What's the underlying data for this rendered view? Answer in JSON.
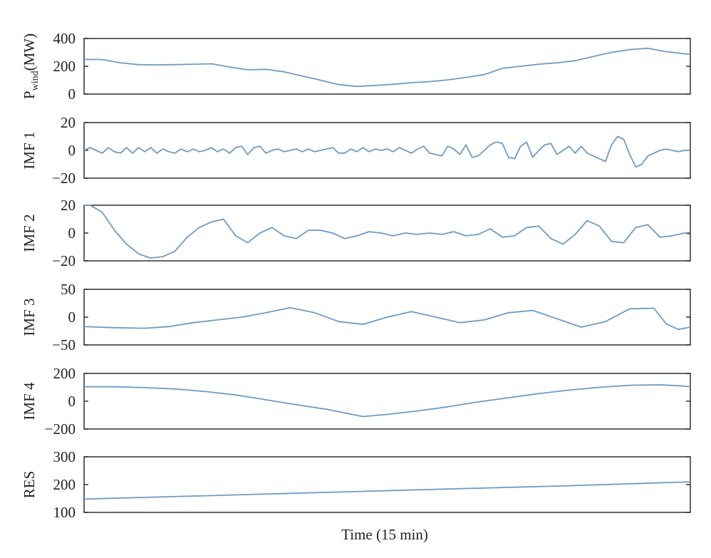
{
  "chart_data": [
    {
      "type": "line",
      "ylabel": "P",
      "ylabel_sub": "wind",
      "ylabel_unit": "(MW)",
      "ylim": [
        0,
        400
      ],
      "yticks": [
        0,
        200,
        400
      ],
      "xlim": [
        0,
        100
      ],
      "x": [
        0,
        3,
        6,
        9,
        12,
        15,
        18,
        21,
        24,
        27,
        30,
        33,
        36,
        39,
        42,
        45,
        48,
        51,
        54,
        57,
        60,
        63,
        66,
        69,
        72,
        75,
        78,
        81,
        84,
        87,
        90,
        93,
        96,
        100
      ],
      "values": [
        250,
        248,
        225,
        212,
        210,
        212,
        215,
        218,
        195,
        175,
        178,
        160,
        130,
        100,
        68,
        55,
        62,
        70,
        82,
        90,
        102,
        120,
        140,
        185,
        200,
        215,
        225,
        240,
        270,
        300,
        320,
        330,
        305,
        285
      ]
    },
    {
      "type": "line",
      "ylabel": "IMF 1",
      "ylim": [
        -20,
        20
      ],
      "yticks": [
        -20,
        0,
        20
      ],
      "xlim": [
        0,
        100
      ],
      "x": [
        0,
        1,
        2,
        3,
        4,
        5,
        6,
        7,
        8,
        9,
        10,
        11,
        12,
        13,
        14,
        15,
        16,
        17,
        18,
        19,
        20,
        21,
        22,
        23,
        24,
        25,
        26,
        27,
        28,
        29,
        30,
        31,
        32,
        33,
        34,
        35,
        36,
        37,
        38,
        39,
        40,
        41,
        42,
        43,
        44,
        45,
        46,
        47,
        48,
        49,
        50,
        51,
        52,
        53,
        54,
        55,
        56,
        57,
        58,
        59,
        60,
        61,
        62,
        63,
        64,
        65,
        66,
        67,
        68,
        69,
        70,
        71,
        72,
        73,
        74,
        75,
        76,
        77,
        78,
        79,
        80,
        81,
        82,
        83,
        84,
        85,
        86,
        87,
        88,
        89,
        90,
        91,
        92,
        93,
        94,
        95,
        96,
        97,
        98,
        99,
        100
      ],
      "values": [
        0,
        2,
        0,
        -2,
        2,
        -1,
        -2,
        2,
        -2,
        2,
        -1,
        2,
        -2,
        1,
        -1,
        -2,
        1,
        -1,
        1,
        -1,
        0,
        2,
        -1,
        1,
        -2,
        2,
        3,
        -3,
        2,
        3,
        -2,
        0,
        1,
        -1,
        0,
        1,
        -1,
        1,
        -1,
        0,
        1,
        2,
        -2,
        -2,
        1,
        -1,
        2,
        -1,
        1,
        0,
        1,
        -1,
        2,
        0,
        -2,
        1,
        3,
        -2,
        -3,
        -4,
        3,
        1,
        -3,
        4,
        -5,
        -4,
        0,
        4,
        6,
        5,
        -5,
        -6,
        3,
        6,
        -5,
        0,
        4,
        5,
        -3,
        0,
        3,
        -2,
        3,
        -2,
        -4,
        -6,
        -8,
        4,
        10,
        8,
        -3,
        -12,
        -10,
        -4,
        -2,
        0,
        1,
        0,
        -1,
        0,
        0
      ],
      "xmax_used": 100
    },
    {
      "type": "line",
      "ylabel": "IMF 2",
      "ylim": [
        -20,
        20
      ],
      "yticks": [
        -20,
        0,
        20
      ],
      "xlim": [
        0,
        100
      ],
      "x": [
        0,
        1,
        3,
        5,
        7,
        9,
        11,
        13,
        15,
        17,
        19,
        21,
        23,
        25,
        27,
        29,
        31,
        33,
        35,
        37,
        39,
        41,
        43,
        45,
        47,
        49,
        51,
        53,
        55,
        57,
        59,
        61,
        63,
        65,
        67,
        69,
        71,
        73,
        75,
        77,
        79,
        81,
        83,
        85,
        87,
        89,
        91,
        93,
        95,
        97,
        99,
        100
      ],
      "values": [
        20,
        20,
        15,
        2,
        -8,
        -15,
        -18,
        -17,
        -13,
        -3,
        4,
        8,
        10,
        -2,
        -7,
        0,
        4,
        -2,
        -4,
        2,
        2,
        0,
        -4,
        -2,
        1,
        0,
        -2,
        0,
        -1,
        0,
        -1,
        1,
        -2,
        -1,
        3,
        -3,
        -2,
        4,
        5,
        -4,
        -8,
        -1,
        9,
        5,
        -6,
        -7,
        4,
        6,
        -3,
        -2,
        0,
        -1
      ]
    },
    {
      "type": "line",
      "ylabel": "IMF 3",
      "ylim": [
        -50,
        50
      ],
      "yticks": [
        -50,
        0,
        50
      ],
      "xlim": [
        0,
        100
      ],
      "x": [
        0,
        5,
        10,
        14,
        18,
        22,
        26,
        30,
        34,
        38,
        42,
        46,
        50,
        54,
        58,
        62,
        66,
        70,
        74,
        78,
        82,
        86,
        90,
        94,
        96,
        98,
        100
      ],
      "values": [
        -17,
        -19,
        -20,
        -17,
        -10,
        -5,
        0,
        8,
        17,
        8,
        -8,
        -13,
        0,
        10,
        0,
        -10,
        -5,
        8,
        12,
        -3,
        -18,
        -8,
        15,
        16,
        -12,
        -22,
        -18
      ],
      "xmax_used": 100
    },
    {
      "type": "line",
      "ylabel": "IMF 4",
      "ylim": [
        -200,
        200
      ],
      "yticks": [
        -200,
        0,
        200
      ],
      "xlim": [
        0,
        100
      ],
      "x": [
        0,
        5,
        10,
        15,
        20,
        25,
        30,
        35,
        40,
        46,
        50,
        55,
        60,
        65,
        70,
        75,
        80,
        85,
        90,
        95,
        98,
        100
      ],
      "values": [
        104,
        104,
        98,
        88,
        70,
        45,
        10,
        -25,
        -58,
        -110,
        -95,
        -70,
        -40,
        -5,
        25,
        55,
        80,
        100,
        115,
        118,
        112,
        104
      ]
    },
    {
      "type": "line",
      "ylabel": "RES",
      "xlabel": "Time (15 min)",
      "ylim": [
        100,
        300
      ],
      "yticks": [
        100,
        200,
        300
      ],
      "xlim": [
        0,
        100
      ],
      "x": [
        0,
        20,
        40,
        60,
        80,
        100
      ],
      "values": [
        148,
        160,
        172,
        184,
        196,
        210
      ]
    }
  ]
}
